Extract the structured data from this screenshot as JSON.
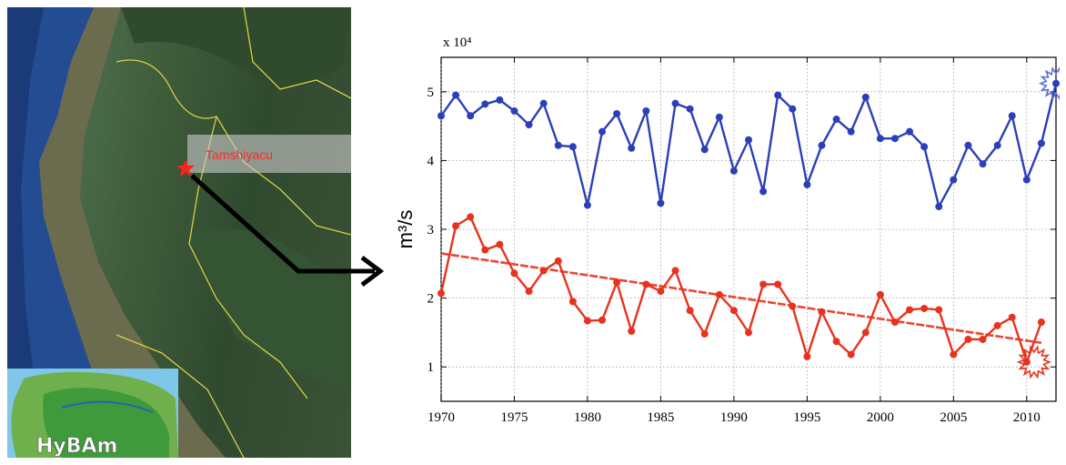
{
  "map": {
    "station_label": "Tamshiyacu",
    "inset_logo": "HyBAm"
  },
  "chart_data": {
    "type": "line",
    "title": "",
    "xlabel": "",
    "ylabel": "m³/s",
    "y_multiplier_label": "x 10⁴",
    "xlim": [
      1970,
      2012
    ],
    "ylim": [
      0.5,
      5.5
    ],
    "x_ticks": [
      1970,
      1975,
      1980,
      1985,
      1990,
      1995,
      2000,
      2005,
      2010
    ],
    "y_ticks": [
      1,
      2,
      3,
      4,
      5
    ],
    "grid": true,
    "x": [
      1970,
      1971,
      1972,
      1973,
      1974,
      1975,
      1976,
      1977,
      1978,
      1979,
      1980,
      1981,
      1982,
      1983,
      1984,
      1985,
      1986,
      1987,
      1988,
      1989,
      1990,
      1991,
      1992,
      1993,
      1994,
      1995,
      1996,
      1997,
      1998,
      1999,
      2000,
      2001,
      2002,
      2003,
      2004,
      2005,
      2006,
      2007,
      2008,
      2009,
      2010,
      2011,
      2012
    ],
    "series": [
      {
        "color": "#2b3fb8",
        "values": [
          4.65,
          4.95,
          4.65,
          4.82,
          4.88,
          4.72,
          4.52,
          4.83,
          4.22,
          4.2,
          3.35,
          4.42,
          4.68,
          4.18,
          4.72,
          3.38,
          4.83,
          4.75,
          4.16,
          4.63,
          3.85,
          4.3,
          3.55,
          4.95,
          4.75,
          3.65,
          4.22,
          4.6,
          4.42,
          4.92,
          4.32,
          4.32,
          4.42,
          4.2,
          3.33,
          3.72,
          4.22,
          3.95,
          4.22,
          4.65,
          3.72,
          4.25,
          5.12
        ]
      },
      {
        "color": "#e8321e",
        "values": [
          2.07,
          3.05,
          3.18,
          2.7,
          2.78,
          2.36,
          2.1,
          2.4,
          2.54,
          1.95,
          1.67,
          1.68,
          2.23,
          1.52,
          2.2,
          2.1,
          2.4,
          1.82,
          1.48,
          2.05,
          1.82,
          1.5,
          2.2,
          2.2,
          1.88,
          1.15,
          1.8,
          1.37,
          1.18,
          1.5,
          2.05,
          1.65,
          1.83,
          1.85,
          1.83,
          1.18,
          1.4,
          1.4,
          1.6,
          1.72,
          1.07,
          1.65,
          null
        ]
      }
    ],
    "trend": {
      "color": "#e8321e",
      "x": [
        1970,
        2011
      ],
      "y": [
        2.65,
        1.35
      ]
    },
    "highlight_color": "#5b6fd8"
  }
}
